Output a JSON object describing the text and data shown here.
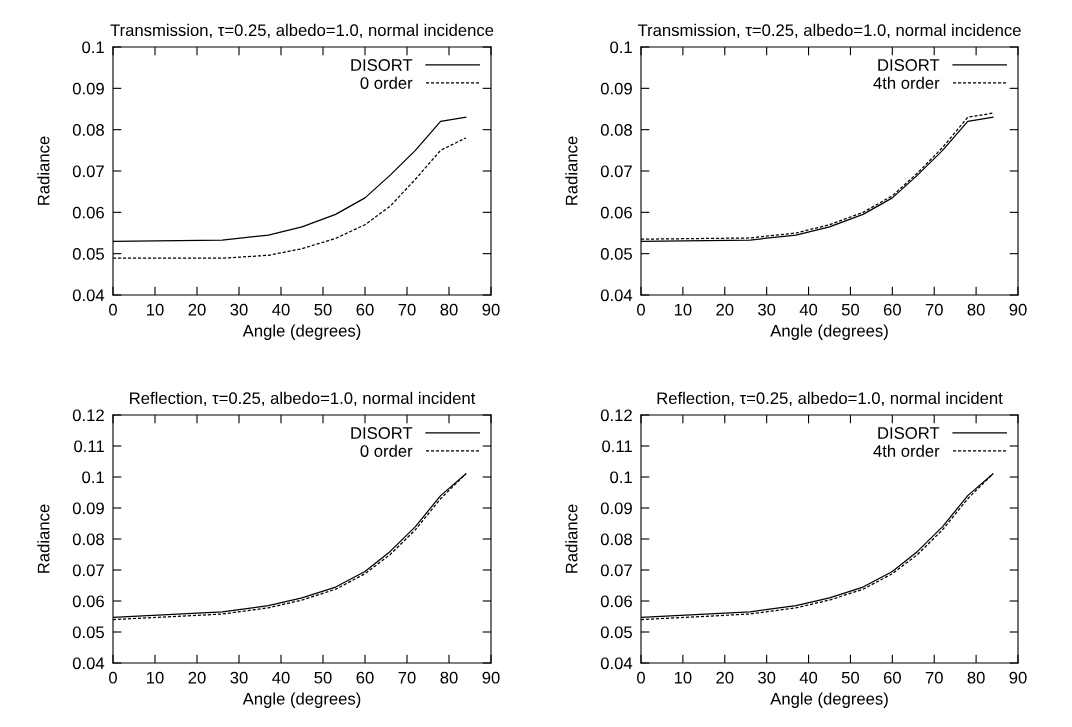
{
  "chart_data": [
    {
      "type": "line",
      "title": "Transmission, τ=0.25, albedo=1.0, normal incidence",
      "xlabel": "Angle (degrees)",
      "ylabel": "Radiance",
      "x": [
        0,
        26,
        37,
        45,
        53,
        60,
        66,
        72,
        78,
        84
      ],
      "xlim": [
        0,
        90
      ],
      "xticks": [
        0,
        10,
        20,
        30,
        40,
        50,
        60,
        70,
        80,
        90
      ],
      "ylim": [
        0.04,
        0.1
      ],
      "yticks": [
        0.04,
        0.05,
        0.06,
        0.07,
        0.08,
        0.09,
        0.1
      ],
      "legend": "top right",
      "grid": false,
      "series": [
        {
          "name": "DISORT",
          "color": "#000000",
          "line_style": "solid",
          "values": [
            0.053,
            0.0533,
            0.0545,
            0.0565,
            0.0595,
            0.0635,
            0.069,
            0.075,
            0.082,
            0.083
          ]
        },
        {
          "name": "0 order",
          "color": "#000000",
          "line_style": "dashed",
          "values": [
            0.0489,
            0.0489,
            0.0496,
            0.0512,
            0.0537,
            0.057,
            0.0615,
            0.068,
            0.075,
            0.078
          ]
        }
      ]
    },
    {
      "type": "line",
      "title": "Transmission, τ=0.25, albedo=1.0, normal incidence",
      "xlabel": "Angle (degrees)",
      "ylabel": "Radiance",
      "x": [
        0,
        26,
        37,
        45,
        53,
        60,
        66,
        72,
        78,
        84
      ],
      "xlim": [
        0,
        90
      ],
      "xticks": [
        0,
        10,
        20,
        30,
        40,
        50,
        60,
        70,
        80,
        90
      ],
      "ylim": [
        0.04,
        0.1
      ],
      "yticks": [
        0.04,
        0.05,
        0.06,
        0.07,
        0.08,
        0.09,
        0.1
      ],
      "legend": "top right",
      "grid": false,
      "series": [
        {
          "name": "DISORT",
          "color": "#000000",
          "line_style": "solid",
          "values": [
            0.053,
            0.0533,
            0.0545,
            0.0565,
            0.0595,
            0.0635,
            0.069,
            0.075,
            0.082,
            0.083
          ]
        },
        {
          "name": "4th order",
          "color": "#000000",
          "line_style": "dashed",
          "values": [
            0.0535,
            0.0538,
            0.055,
            0.057,
            0.06,
            0.064,
            0.0695,
            0.0757,
            0.083,
            0.084
          ]
        }
      ]
    },
    {
      "type": "line",
      "title": "Reflection, τ=0.25, albedo=1.0, normal incident",
      "xlabel": "Angle (degrees)",
      "ylabel": "Radiance",
      "x": [
        0,
        26,
        37,
        45,
        53,
        60,
        66,
        72,
        78,
        84
      ],
      "xlim": [
        0,
        90
      ],
      "xticks": [
        0,
        10,
        20,
        30,
        40,
        50,
        60,
        70,
        80,
        90
      ],
      "ylim": [
        0.04,
        0.12
      ],
      "yticks": [
        0.04,
        0.05,
        0.06,
        0.07,
        0.08,
        0.09,
        0.1,
        0.11,
        0.12
      ],
      "legend": "top right",
      "grid": false,
      "series": [
        {
          "name": "DISORT",
          "color": "#000000",
          "line_style": "solid",
          "values": [
            0.0547,
            0.0565,
            0.0585,
            0.061,
            0.0645,
            0.0695,
            0.076,
            0.084,
            0.094,
            0.101
          ]
        },
        {
          "name": "0 order",
          "color": "#000000",
          "line_style": "dashed",
          "values": [
            0.054,
            0.0558,
            0.0578,
            0.0603,
            0.0638,
            0.0688,
            0.075,
            0.083,
            0.093,
            0.101
          ]
        }
      ]
    },
    {
      "type": "line",
      "title": "Reflection, τ=0.25, albedo=1.0, normal incident",
      "xlabel": "Angle (degrees)",
      "ylabel": "Radiance",
      "x": [
        0,
        26,
        37,
        45,
        53,
        60,
        66,
        72,
        78,
        84
      ],
      "xlim": [
        0,
        90
      ],
      "xticks": [
        0,
        10,
        20,
        30,
        40,
        50,
        60,
        70,
        80,
        90
      ],
      "ylim": [
        0.04,
        0.12
      ],
      "yticks": [
        0.04,
        0.05,
        0.06,
        0.07,
        0.08,
        0.09,
        0.1,
        0.11,
        0.12
      ],
      "legend": "top right",
      "grid": false,
      "series": [
        {
          "name": "DISORT",
          "color": "#000000",
          "line_style": "solid",
          "values": [
            0.0547,
            0.0565,
            0.0585,
            0.061,
            0.0645,
            0.0695,
            0.076,
            0.084,
            0.094,
            0.101
          ]
        },
        {
          "name": "4th order",
          "color": "#000000",
          "line_style": "dashed",
          "values": [
            0.054,
            0.0558,
            0.0578,
            0.0603,
            0.0638,
            0.0688,
            0.075,
            0.083,
            0.093,
            0.101
          ]
        }
      ]
    }
  ]
}
